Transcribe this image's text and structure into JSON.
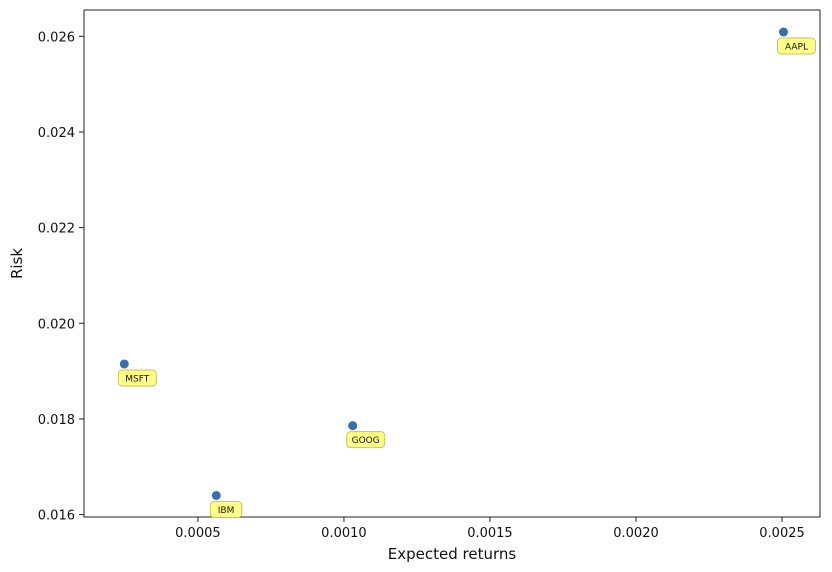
{
  "chart_data": {
    "type": "scatter",
    "title": "",
    "xlabel": "Expected returns",
    "ylabel": "Risk",
    "xlim": [
      0.00011,
      0.00263
    ],
    "ylim": [
      0.01595,
      0.02655
    ],
    "x_ticks": [
      0.0005,
      0.001,
      0.0015,
      0.002,
      0.0025
    ],
    "x_tick_labels": [
      "0.0005",
      "0.0010",
      "0.0015",
      "0.0020",
      "0.0025"
    ],
    "y_ticks": [
      0.016,
      0.018,
      0.02,
      0.022,
      0.024,
      0.026
    ],
    "y_tick_labels": [
      "0.016",
      "0.018",
      "0.020",
      "0.022",
      "0.024",
      "0.026"
    ],
    "grid": false,
    "point_color": "#3b6ea5",
    "annotation_fill": "#ffff8a",
    "annotation_stroke": "#c9c25a",
    "points": [
      {
        "label": "AAPL",
        "x": 0.002505,
        "y": 0.02609
      },
      {
        "label": "MSFT",
        "x": 0.000248,
        "y": 0.01915
      },
      {
        "label": "IBM",
        "x": 0.000563,
        "y": 0.0164
      },
      {
        "label": "GOOG",
        "x": 0.00103,
        "y": 0.01786
      }
    ]
  }
}
